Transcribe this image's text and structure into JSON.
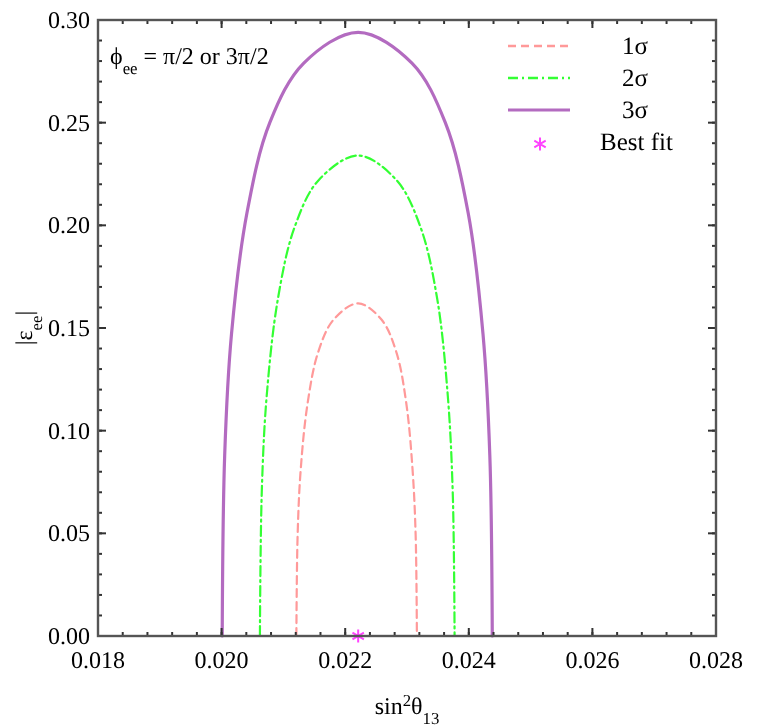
{
  "chart_data": {
    "type": "line",
    "xlabel": "sin$^{2}$θ$_{13}$",
    "ylabel": "|ε$_{ee}$|",
    "annotations": [
      "ϕ$_{ee}$ = π/2 or 3π/2"
    ],
    "xlim": [
      0.018,
      0.028
    ],
    "ylim": [
      0,
      0.3
    ],
    "xticks": [
      0.018,
      {
        "value": 0.02,
        "label": "0.020"
      },
      0.022,
      0.024,
      0.026,
      0.028
    ],
    "yticks": [
      {
        "value": 0,
        "label": "0.00"
      },
      0.05,
      {
        "value": 0.1,
        "label": "0.10"
      },
      0.15,
      {
        "value": 0.2,
        "label": "0.20"
      },
      0.25,
      {
        "value": 0.3,
        "label": "0.30"
      }
    ],
    "grid": false,
    "legend": "top right",
    "series": [
      {
        "name": "1σ",
        "color": "#ff9999",
        "line_style": "dashed",
        "x": [
          0.02121,
          0.02123,
          0.02128,
          0.02139,
          0.02156,
          0.02181,
          0.02221,
          0.02259,
          0.02283,
          0.02299,
          0.02309,
          0.02314,
          0.02316
        ],
        "values": [
          0,
          0.049,
          0.081,
          0.113,
          0.138,
          0.154,
          0.162,
          0.154,
          0.138,
          0.113,
          0.081,
          0.049,
          0
        ]
      },
      {
        "name": "2σ",
        "color": "#33ff33",
        "line_style": "dashdot",
        "x": [
          0.02062,
          0.02065,
          0.02073,
          0.02091,
          0.02118,
          0.02157,
          0.02221,
          0.02283,
          0.02322,
          0.02349,
          0.02366,
          0.02374,
          0.02377
        ],
        "values": [
          0,
          0.07,
          0.117,
          0.164,
          0.199,
          0.222,
          0.234,
          0.222,
          0.199,
          0.164,
          0.117,
          0.07,
          0
        ]
      },
      {
        "name": "3σ",
        "color": "#b36bc0",
        "line_style": "solid",
        "x": [
          0.02001,
          0.02005,
          0.02016,
          0.02041,
          0.02078,
          0.02133,
          0.02221,
          0.02308,
          0.02362,
          0.02399,
          0.02423,
          0.02434,
          0.02438
        ],
        "values": [
          0,
          0.088,
          0.147,
          0.206,
          0.25,
          0.279,
          0.294,
          0.279,
          0.25,
          0.206,
          0.147,
          0.088,
          0
        ]
      },
      {
        "name": "Best fit",
        "type": "scatter",
        "marker": "cross",
        "color": "#ff44ff",
        "x": [
          0.02221
        ],
        "values": [
          0
        ]
      }
    ]
  }
}
